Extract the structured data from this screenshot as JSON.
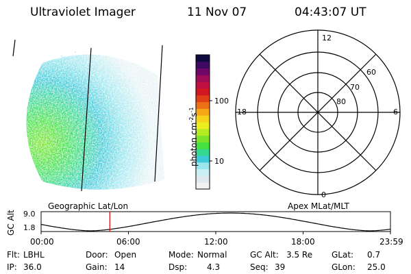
{
  "header": {
    "title": "Ultraviolet Imager",
    "date": "11 Nov 07",
    "time": "04:43:07 UT"
  },
  "colorbar": {
    "label_base": "photon cm",
    "label_exp1": "-2",
    "label_mid": "s",
    "label_exp2": "-1",
    "ticks": [
      "100",
      "10"
    ],
    "colors": [
      "#f2f2f2",
      "#e0e8f0",
      "#c8f0f4",
      "#9ae6ef",
      "#3ec9d8",
      "#36d890",
      "#46e040",
      "#7ce42a",
      "#b6ec22",
      "#ecee20",
      "#f6d21a",
      "#f4a818",
      "#ec7016",
      "#e04018",
      "#d21820",
      "#c01040",
      "#a00c58",
      "#70086a",
      "#400860",
      "#100840"
    ]
  },
  "polar": {
    "mlt_labels": [
      "12",
      "18",
      "6",
      "0"
    ],
    "lat_labels": [
      "60",
      "70",
      "80"
    ]
  },
  "timeline": {
    "ylabel": "GC Alt",
    "yticks": [
      "9.0",
      "1.8"
    ],
    "left_title": "Geographic Lat/Lon",
    "right_title": "Apex MLat/MLT",
    "xticks": [
      "00:00",
      "06:00",
      "12:00",
      "18:00",
      "23:59"
    ],
    "current_marker_hours": 4.72
  },
  "info": {
    "flt_label": "Flt:",
    "flt_value": "LBHL",
    "ip_label": "IP:",
    "ip_value": "36.0",
    "door_label": "Door:",
    "door_value": "Open",
    "gain_label": "Gain:",
    "gain_value": "14",
    "mode_label": "Mode:",
    "mode_value": "Normal",
    "dsp_label": "Dsp:",
    "dsp_value": "4.3",
    "gcalt_label": "GC Alt:",
    "gcalt_value": "3.5 Re",
    "seq_label": "Seq:",
    "seq_value": "39",
    "glat_label": "GLat:",
    "glat_value": "0.7",
    "glon_label": "GLon:",
    "glon_value": "25.0"
  }
}
